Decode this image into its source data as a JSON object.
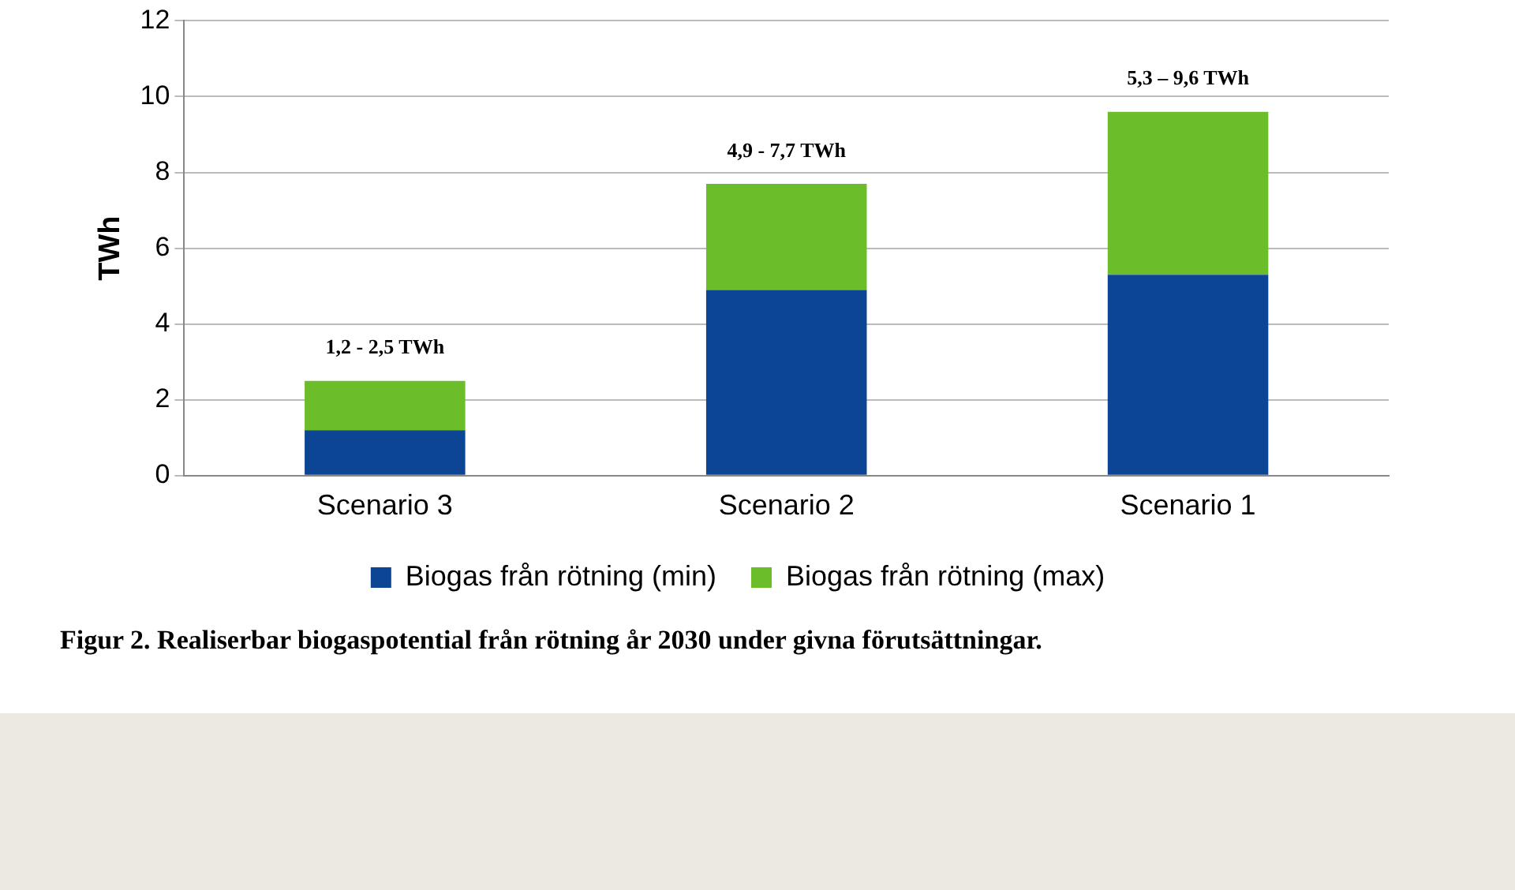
{
  "chart_data": {
    "type": "bar",
    "stacked": true,
    "ylabel": "TWh",
    "categories": [
      "Scenario 3",
      "Scenario 2",
      "Scenario 1"
    ],
    "series": [
      {
        "name": "Biogas från rötning (min)",
        "color": "#0d4595",
        "values": [
          1.2,
          4.9,
          5.3
        ]
      },
      {
        "name": "Biogas från rötning (max)",
        "color": "#6bbd2a",
        "values": [
          1.3,
          2.8,
          4.3
        ]
      }
    ],
    "ylim": [
      0,
      12
    ],
    "yticks": [
      0,
      2,
      4,
      6,
      8,
      10,
      12
    ],
    "grid": "y",
    "legend": "bottom",
    "annotations": [
      {
        "text": "1,2 - 2,5 TWh",
        "x": "Scenario 3",
        "y": 2.5
      },
      {
        "text": "4,9 - 7,7 TWh",
        "x": "Scenario 2",
        "y": 7.7
      },
      {
        "text": "5,3 – 9,6 TWh",
        "x": "Scenario 1",
        "y": 9.6
      },
      "Figur 2. Realiserbar biogaspotential från rötning år 2030 under givna förutsättningar."
    ]
  }
}
